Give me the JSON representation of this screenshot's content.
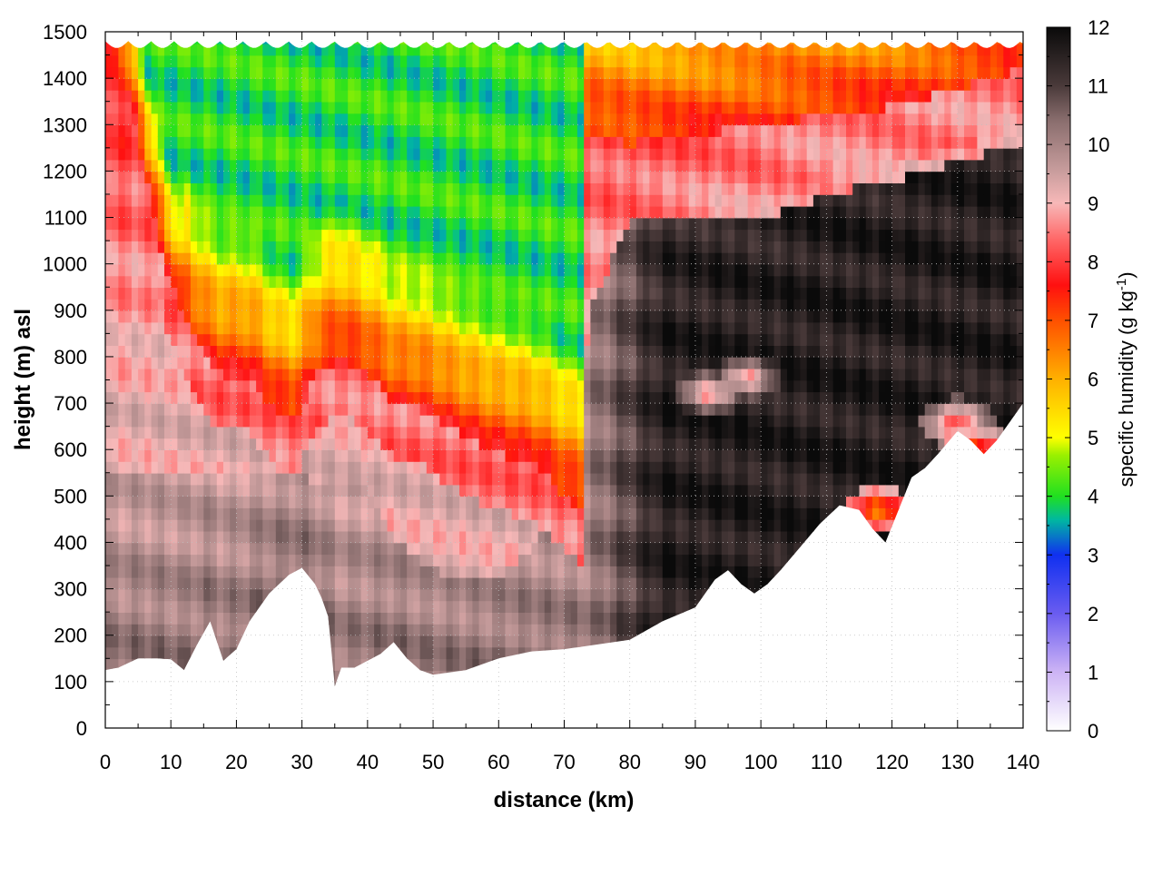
{
  "chart_data": {
    "type": "heatmap",
    "title": "",
    "xlabel": "distance (km)",
    "ylabel": "height (m) asl",
    "xlim": [
      0,
      140
    ],
    "ylim": [
      0,
      1500
    ],
    "x_ticks": [
      0,
      10,
      20,
      30,
      40,
      50,
      60,
      70,
      80,
      90,
      100,
      110,
      120,
      130,
      140
    ],
    "y_ticks": [
      0,
      100,
      200,
      300,
      400,
      500,
      600,
      700,
      800,
      900,
      1000,
      1100,
      1200,
      1300,
      1400,
      1500
    ],
    "grid": true,
    "colorbar": {
      "label_main": "specific humidity (g kg",
      "label_sup": "-1",
      "label_end": ")",
      "range": [
        0,
        12
      ],
      "ticks": [
        0,
        1,
        2,
        3,
        4,
        5,
        6,
        7,
        8,
        9,
        10,
        11,
        12
      ],
      "palette": [
        {
          "v": 0,
          "color": "#ffffff"
        },
        {
          "v": 1,
          "color": "#cdb4f5"
        },
        {
          "v": 2,
          "color": "#6a5cf0"
        },
        {
          "v": 3,
          "color": "#1030f0"
        },
        {
          "v": 3.6,
          "color": "#00b8a0"
        },
        {
          "v": 4,
          "color": "#20e020"
        },
        {
          "v": 4.7,
          "color": "#9af000"
        },
        {
          "v": 5,
          "color": "#ffff00"
        },
        {
          "v": 6,
          "color": "#ffb000"
        },
        {
          "v": 7,
          "color": "#ff5000"
        },
        {
          "v": 7.6,
          "color": "#ff1010"
        },
        {
          "v": 8.4,
          "color": "#ff6a6a"
        },
        {
          "v": 9,
          "color": "#f7b8b8"
        },
        {
          "v": 9.6,
          "color": "#c49a9a"
        },
        {
          "v": 10.4,
          "color": "#8a6e6e"
        },
        {
          "v": 11,
          "color": "#4a3a3a"
        },
        {
          "v": 12,
          "color": "#0a0a0a"
        }
      ]
    },
    "terrain": [
      [
        0,
        125
      ],
      [
        2,
        130
      ],
      [
        5,
        150
      ],
      [
        8,
        150
      ],
      [
        10,
        148
      ],
      [
        12,
        125
      ],
      [
        14,
        180
      ],
      [
        16,
        230
      ],
      [
        18,
        145
      ],
      [
        20,
        170
      ],
      [
        22,
        230
      ],
      [
        25,
        290
      ],
      [
        28,
        330
      ],
      [
        30,
        345
      ],
      [
        32,
        310
      ],
      [
        33,
        280
      ],
      [
        34,
        240
      ],
      [
        35,
        90
      ],
      [
        36,
        130
      ],
      [
        38,
        130
      ],
      [
        40,
        145
      ],
      [
        42,
        160
      ],
      [
        44,
        185
      ],
      [
        46,
        150
      ],
      [
        48,
        125
      ],
      [
        50,
        115
      ],
      [
        55,
        125
      ],
      [
        60,
        150
      ],
      [
        65,
        165
      ],
      [
        70,
        170
      ],
      [
        75,
        180
      ],
      [
        80,
        190
      ],
      [
        85,
        230
      ],
      [
        90,
        260
      ],
      [
        93,
        320
      ],
      [
        95,
        340
      ],
      [
        97,
        310
      ],
      [
        99,
        290
      ],
      [
        101,
        310
      ],
      [
        103,
        340
      ],
      [
        106,
        390
      ],
      [
        109,
        440
      ],
      [
        112,
        480
      ],
      [
        115,
        470
      ],
      [
        117,
        430
      ],
      [
        119,
        400
      ],
      [
        121,
        470
      ],
      [
        123,
        540
      ],
      [
        125,
        560
      ],
      [
        127,
        590
      ],
      [
        130,
        640
      ],
      [
        132,
        620
      ],
      [
        134,
        590
      ],
      [
        136,
        620
      ],
      [
        140,
        700
      ]
    ],
    "lift_top": 1480,
    "dry_tongue": [
      [
        0,
        1480
      ],
      [
        3,
        1400
      ],
      [
        6,
        1200
      ],
      [
        9,
        1000
      ],
      [
        12,
        880
      ],
      [
        15,
        800
      ],
      [
        18,
        760
      ],
      [
        22,
        760
      ],
      [
        26,
        680
      ],
      [
        29,
        660
      ],
      [
        32,
        760
      ],
      [
        36,
        800
      ],
      [
        40,
        760
      ],
      [
        44,
        700
      ],
      [
        48,
        690
      ],
      [
        52,
        650
      ],
      [
        58,
        600
      ],
      [
        62,
        580
      ],
      [
        66,
        560
      ],
      [
        70,
        500
      ],
      [
        72,
        480
      ]
    ],
    "moist_layer_base": [
      [
        0,
        560
      ],
      [
        10,
        560
      ],
      [
        20,
        540
      ],
      [
        30,
        540
      ],
      [
        40,
        520
      ],
      [
        44,
        420
      ],
      [
        48,
        360
      ],
      [
        52,
        330
      ],
      [
        56,
        320
      ],
      [
        60,
        330
      ],
      [
        66,
        400
      ],
      [
        70,
        520
      ],
      [
        72,
        600
      ],
      [
        74,
        900
      ],
      [
        80,
        1100
      ],
      [
        90,
        1100
      ],
      [
        100,
        1100
      ],
      [
        110,
        1150
      ],
      [
        120,
        1180
      ],
      [
        130,
        1220
      ],
      [
        140,
        1260
      ]
    ],
    "upper_dry_base": [
      [
        0,
        1480
      ],
      [
        20,
        1400
      ],
      [
        40,
        1340
      ],
      [
        50,
        1220
      ],
      [
        60,
        1200
      ],
      [
        70,
        1280
      ],
      [
        80,
        1260
      ],
      [
        90,
        1280
      ],
      [
        100,
        1300
      ],
      [
        110,
        1320
      ],
      [
        120,
        1340
      ],
      [
        130,
        1380
      ],
      [
        140,
        1420
      ]
    ],
    "anomalies": [
      {
        "x": 118,
        "y": 470,
        "value": 6.5
      },
      {
        "x": 133,
        "y": 600,
        "value": 6.8
      },
      {
        "x": 130,
        "y": 660,
        "value": 7.5
      },
      {
        "x": 92,
        "y": 720,
        "value": 8.5
      },
      {
        "x": 98,
        "y": 760,
        "value": 8.5
      }
    ]
  }
}
